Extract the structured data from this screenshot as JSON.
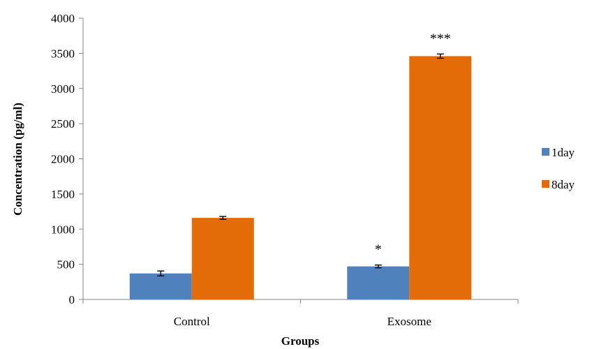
{
  "chart_data": {
    "type": "bar",
    "title": "",
    "xlabel": "Groups",
    "ylabel": "Concentration (pg/ml)",
    "ylim": [
      0,
      4000
    ],
    "yticks": [
      0,
      500,
      1000,
      1500,
      2000,
      2500,
      3000,
      3500,
      4000
    ],
    "categories": [
      "Control",
      "Exosome"
    ],
    "series": [
      {
        "name": "1day",
        "color": "#4f81bd",
        "values": [
          370,
          470
        ],
        "errors": [
          35,
          20
        ]
      },
      {
        "name": "8day",
        "color": "#e36c09",
        "values": [
          1160,
          3460
        ],
        "errors": [
          20,
          30
        ]
      }
    ],
    "annotations": [
      {
        "series": 0,
        "category": 1,
        "text": "*"
      },
      {
        "series": 1,
        "category": 1,
        "text": "***"
      }
    ],
    "grid": false,
    "legend_position": "right"
  }
}
